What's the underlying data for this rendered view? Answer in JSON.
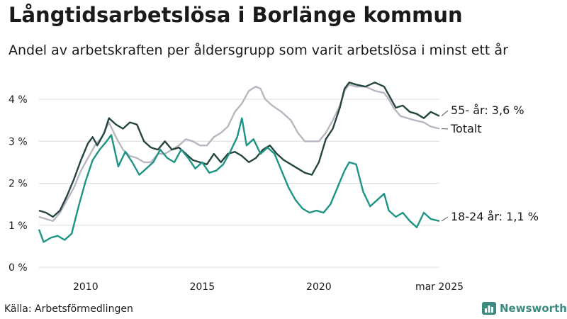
{
  "title": "Långtidsarbetslösa i Borlänge kommun",
  "subtitle": "Andel av arbetskraften per åldersgrupp som varit arbetslösa i minst ett år",
  "source": "Källa: Arbetsförmedlingen",
  "brand": {
    "name": "Newsworthy",
    "icon": "newsworthy-bar-chart-icon",
    "color": "#3d8a80"
  },
  "chart_data": {
    "type": "line",
    "x_unit": "year",
    "x_range": [
      2008.0,
      2025.17
    ],
    "ylim": [
      0,
      4.6
    ],
    "y_ticks": [
      {
        "value": 0,
        "label": "0 %"
      },
      {
        "value": 1,
        "label": "1 %"
      },
      {
        "value": 2,
        "label": "2 %"
      },
      {
        "value": 3,
        "label": "3 %"
      },
      {
        "value": 4,
        "label": "4 %"
      }
    ],
    "x_ticks": [
      {
        "value": 2010,
        "label": "2010"
      },
      {
        "value": 2015,
        "label": "2015"
      },
      {
        "value": 2020,
        "label": "2020"
      },
      {
        "value": 2025.17,
        "label": "mar 2025"
      }
    ],
    "grid": true,
    "series": [
      {
        "name": "Totalt",
        "label": "Totalt",
        "color": "#b9b6c1",
        "points": [
          [
            2008.0,
            1.2
          ],
          [
            2008.3,
            1.15
          ],
          [
            2008.6,
            1.1
          ],
          [
            2008.9,
            1.3
          ],
          [
            2009.2,
            1.6
          ],
          [
            2009.5,
            1.9
          ],
          [
            2009.8,
            2.3
          ],
          [
            2010.1,
            2.6
          ],
          [
            2010.4,
            2.9
          ],
          [
            2010.7,
            3.1
          ],
          [
            2011.0,
            3.45
          ],
          [
            2011.3,
            3.1
          ],
          [
            2011.6,
            2.8
          ],
          [
            2011.9,
            2.65
          ],
          [
            2012.2,
            2.6
          ],
          [
            2012.5,
            2.5
          ],
          [
            2012.8,
            2.5
          ],
          [
            2013.1,
            2.7
          ],
          [
            2013.4,
            2.7
          ],
          [
            2013.7,
            2.8
          ],
          [
            2014.0,
            2.9
          ],
          [
            2014.3,
            3.05
          ],
          [
            2014.6,
            3.0
          ],
          [
            2014.9,
            2.9
          ],
          [
            2015.2,
            2.9
          ],
          [
            2015.5,
            3.1
          ],
          [
            2015.8,
            3.2
          ],
          [
            2016.1,
            3.35
          ],
          [
            2016.4,
            3.7
          ],
          [
            2016.7,
            3.9
          ],
          [
            2017.0,
            4.2
          ],
          [
            2017.3,
            4.3
          ],
          [
            2017.5,
            4.25
          ],
          [
            2017.7,
            4.0
          ],
          [
            2018.0,
            3.85
          ],
          [
            2018.4,
            3.7
          ],
          [
            2018.8,
            3.5
          ],
          [
            2019.1,
            3.2
          ],
          [
            2019.4,
            3.0
          ],
          [
            2019.7,
            3.0
          ],
          [
            2020.0,
            3.0
          ],
          [
            2020.3,
            3.2
          ],
          [
            2020.6,
            3.5
          ],
          [
            2020.9,
            3.85
          ],
          [
            2021.1,
            4.2
          ],
          [
            2021.3,
            4.35
          ],
          [
            2021.6,
            4.3
          ],
          [
            2022.0,
            4.3
          ],
          [
            2022.4,
            4.2
          ],
          [
            2022.8,
            4.15
          ],
          [
            2023.0,
            4.0
          ],
          [
            2023.2,
            3.8
          ],
          [
            2023.5,
            3.6
          ],
          [
            2023.8,
            3.55
          ],
          [
            2024.1,
            3.5
          ],
          [
            2024.5,
            3.45
          ],
          [
            2024.8,
            3.35
          ],
          [
            2025.17,
            3.3
          ]
        ]
      },
      {
        "name": "55- år",
        "label": "55- år: 3,6 %",
        "color": "#24463f",
        "points": [
          [
            2008.0,
            1.35
          ],
          [
            2008.3,
            1.3
          ],
          [
            2008.6,
            1.2
          ],
          [
            2008.9,
            1.35
          ],
          [
            2009.2,
            1.7
          ],
          [
            2009.5,
            2.1
          ],
          [
            2009.8,
            2.55
          ],
          [
            2010.1,
            2.95
          ],
          [
            2010.3,
            3.1
          ],
          [
            2010.5,
            2.9
          ],
          [
            2010.8,
            3.2
          ],
          [
            2011.0,
            3.55
          ],
          [
            2011.3,
            3.4
          ],
          [
            2011.6,
            3.3
          ],
          [
            2011.9,
            3.45
          ],
          [
            2012.2,
            3.4
          ],
          [
            2012.5,
            3.0
          ],
          [
            2012.8,
            2.85
          ],
          [
            2013.1,
            2.8
          ],
          [
            2013.4,
            3.0
          ],
          [
            2013.7,
            2.8
          ],
          [
            2014.0,
            2.85
          ],
          [
            2014.3,
            2.7
          ],
          [
            2014.6,
            2.55
          ],
          [
            2014.9,
            2.5
          ],
          [
            2015.2,
            2.45
          ],
          [
            2015.5,
            2.7
          ],
          [
            2015.8,
            2.5
          ],
          [
            2016.1,
            2.7
          ],
          [
            2016.4,
            2.75
          ],
          [
            2016.7,
            2.65
          ],
          [
            2017.0,
            2.5
          ],
          [
            2017.3,
            2.6
          ],
          [
            2017.6,
            2.8
          ],
          [
            2017.9,
            2.9
          ],
          [
            2018.2,
            2.7
          ],
          [
            2018.5,
            2.55
          ],
          [
            2018.8,
            2.45
          ],
          [
            2019.1,
            2.35
          ],
          [
            2019.4,
            2.25
          ],
          [
            2019.7,
            2.2
          ],
          [
            2020.0,
            2.5
          ],
          [
            2020.3,
            3.05
          ],
          [
            2020.6,
            3.3
          ],
          [
            2020.9,
            3.8
          ],
          [
            2021.1,
            4.25
          ],
          [
            2021.3,
            4.4
          ],
          [
            2021.6,
            4.35
          ],
          [
            2022.0,
            4.3
          ],
          [
            2022.4,
            4.4
          ],
          [
            2022.8,
            4.3
          ],
          [
            2023.0,
            4.1
          ],
          [
            2023.3,
            3.8
          ],
          [
            2023.6,
            3.85
          ],
          [
            2023.9,
            3.7
          ],
          [
            2024.2,
            3.65
          ],
          [
            2024.5,
            3.55
          ],
          [
            2024.8,
            3.7
          ],
          [
            2025.17,
            3.6
          ]
        ]
      },
      {
        "name": "18-24 år",
        "label": "18-24 år: 1,1 %",
        "color": "#1d9484",
        "points": [
          [
            2008.0,
            0.9
          ],
          [
            2008.2,
            0.6
          ],
          [
            2008.5,
            0.7
          ],
          [
            2008.8,
            0.75
          ],
          [
            2009.1,
            0.65
          ],
          [
            2009.4,
            0.8
          ],
          [
            2009.7,
            1.45
          ],
          [
            2010.0,
            2.05
          ],
          [
            2010.3,
            2.55
          ],
          [
            2010.6,
            2.8
          ],
          [
            2010.9,
            3.0
          ],
          [
            2011.1,
            3.15
          ],
          [
            2011.4,
            2.4
          ],
          [
            2011.7,
            2.75
          ],
          [
            2012.0,
            2.5
          ],
          [
            2012.3,
            2.2
          ],
          [
            2012.6,
            2.35
          ],
          [
            2012.9,
            2.5
          ],
          [
            2013.2,
            2.8
          ],
          [
            2013.5,
            2.6
          ],
          [
            2013.8,
            2.5
          ],
          [
            2014.1,
            2.8
          ],
          [
            2014.4,
            2.6
          ],
          [
            2014.7,
            2.35
          ],
          [
            2015.0,
            2.5
          ],
          [
            2015.3,
            2.25
          ],
          [
            2015.6,
            2.3
          ],
          [
            2015.9,
            2.45
          ],
          [
            2016.2,
            2.75
          ],
          [
            2016.5,
            3.1
          ],
          [
            2016.7,
            3.55
          ],
          [
            2016.9,
            2.9
          ],
          [
            2017.2,
            3.05
          ],
          [
            2017.5,
            2.7
          ],
          [
            2017.8,
            2.85
          ],
          [
            2018.1,
            2.7
          ],
          [
            2018.4,
            2.3
          ],
          [
            2018.7,
            1.9
          ],
          [
            2019.0,
            1.6
          ],
          [
            2019.3,
            1.4
          ],
          [
            2019.6,
            1.3
          ],
          [
            2019.9,
            1.35
          ],
          [
            2020.2,
            1.3
          ],
          [
            2020.5,
            1.5
          ],
          [
            2020.8,
            1.9
          ],
          [
            2021.1,
            2.3
          ],
          [
            2021.3,
            2.5
          ],
          [
            2021.6,
            2.45
          ],
          [
            2021.9,
            1.8
          ],
          [
            2022.2,
            1.45
          ],
          [
            2022.5,
            1.6
          ],
          [
            2022.8,
            1.75
          ],
          [
            2023.0,
            1.35
          ],
          [
            2023.3,
            1.2
          ],
          [
            2023.6,
            1.3
          ],
          [
            2023.9,
            1.1
          ],
          [
            2024.2,
            0.95
          ],
          [
            2024.5,
            1.3
          ],
          [
            2024.8,
            1.15
          ],
          [
            2025.17,
            1.1
          ]
        ]
      }
    ]
  }
}
